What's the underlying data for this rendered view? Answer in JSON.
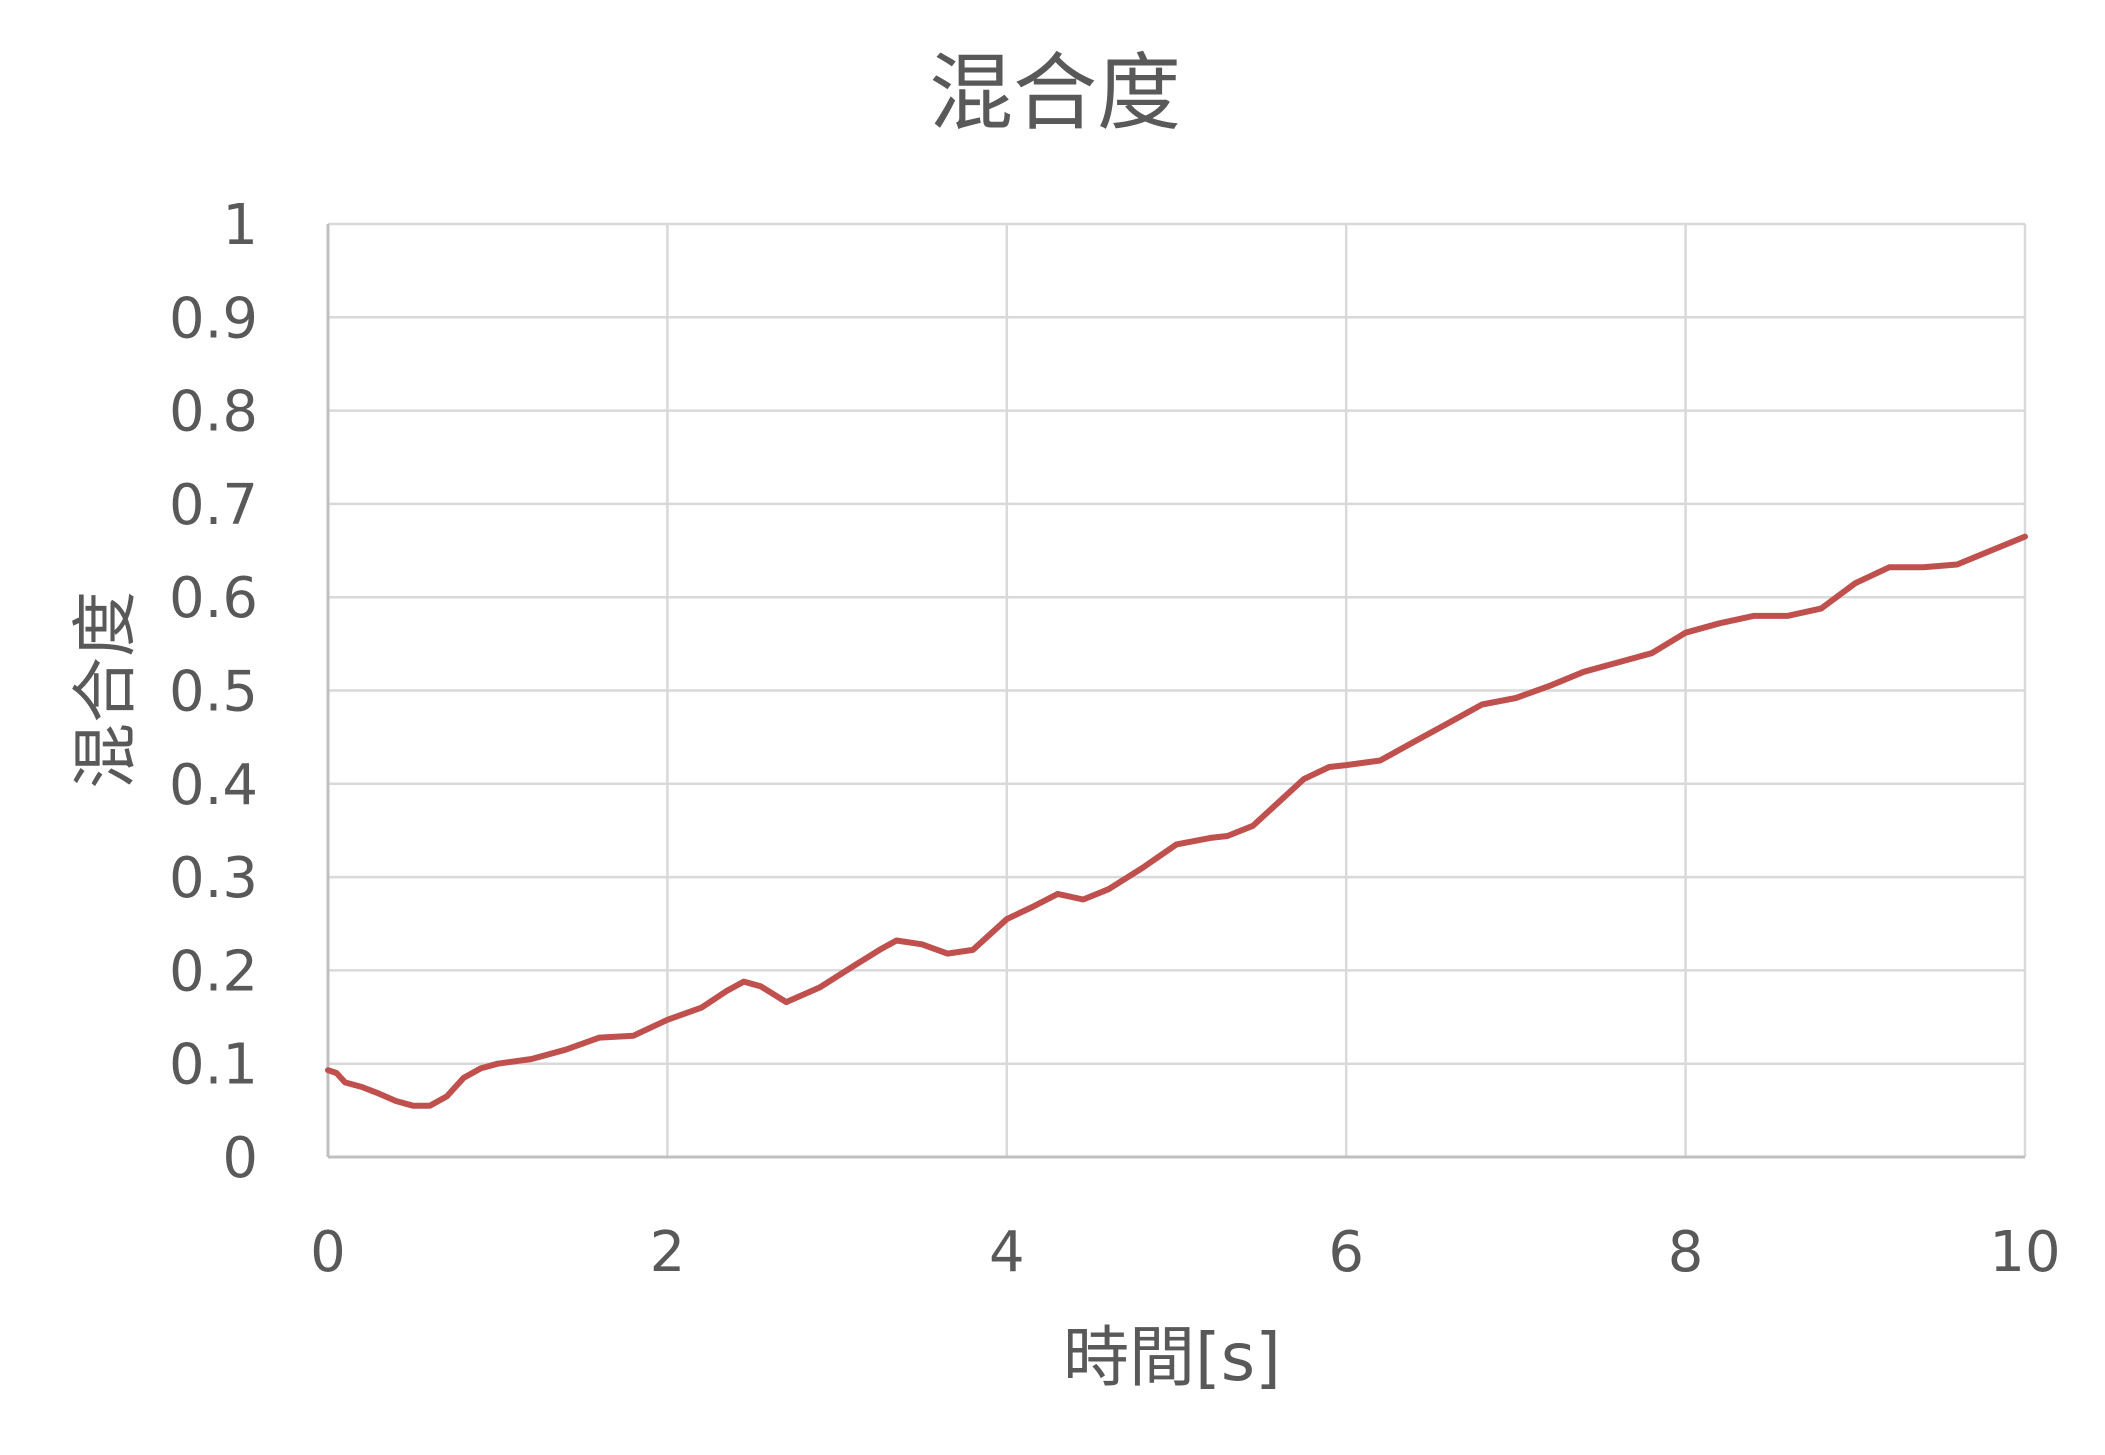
{
  "chart_data": {
    "type": "line",
    "title": "混合度",
    "xlabel": "時間[s]",
    "ylabel": "混合度",
    "xlim": [
      0,
      10
    ],
    "ylim": [
      0,
      1
    ],
    "xticks": [
      0,
      2,
      4,
      6,
      8,
      10
    ],
    "yticks": [
      0,
      0.1,
      0.2,
      0.3,
      0.4,
      0.5,
      0.6,
      0.7,
      0.8,
      0.9,
      1
    ],
    "grid": true,
    "legend": "none",
    "series": [
      {
        "color": "#c0504d",
        "x": [
          0,
          0.05,
          0.1,
          0.2,
          0.3,
          0.4,
          0.5,
          0.6,
          0.7,
          0.8,
          0.9,
          1.0,
          1.2,
          1.4,
          1.6,
          1.8,
          2.0,
          2.2,
          2.35,
          2.45,
          2.55,
          2.7,
          2.9,
          3.1,
          3.25,
          3.35,
          3.5,
          3.65,
          3.8,
          4.0,
          4.15,
          4.3,
          4.45,
          4.6,
          4.8,
          5.0,
          5.2,
          5.3,
          5.45,
          5.6,
          5.75,
          5.9,
          6.0,
          6.2,
          6.4,
          6.6,
          6.8,
          7.0,
          7.2,
          7.4,
          7.6,
          7.8,
          8.0,
          8.2,
          8.4,
          8.6,
          8.8,
          9.0,
          9.2,
          9.4,
          9.6,
          9.8,
          10.0
        ],
        "values": [
          0.093,
          0.09,
          0.08,
          0.075,
          0.068,
          0.06,
          0.055,
          0.055,
          0.065,
          0.085,
          0.095,
          0.1,
          0.105,
          0.115,
          0.128,
          0.13,
          0.147,
          0.16,
          0.178,
          0.188,
          0.183,
          0.166,
          0.182,
          0.205,
          0.222,
          0.232,
          0.228,
          0.218,
          0.222,
          0.255,
          0.268,
          0.282,
          0.276,
          0.287,
          0.31,
          0.335,
          0.342,
          0.344,
          0.355,
          0.38,
          0.405,
          0.418,
          0.42,
          0.425,
          0.445,
          0.465,
          0.485,
          0.492,
          0.505,
          0.52,
          0.53,
          0.54,
          0.562,
          0.572,
          0.58,
          0.58,
          0.588,
          0.615,
          0.632,
          0.632,
          0.635,
          0.65,
          0.665
        ]
      }
    ]
  }
}
